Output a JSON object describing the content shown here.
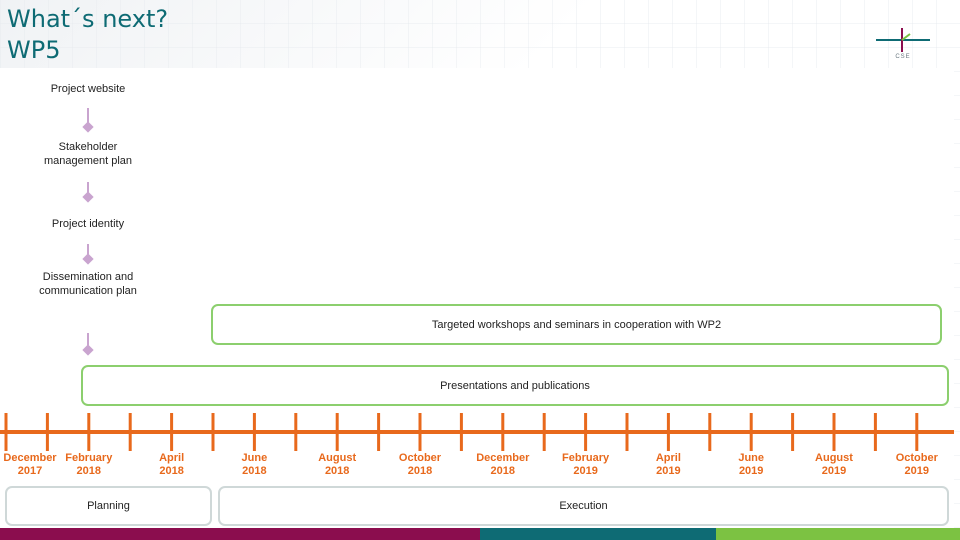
{
  "slide": {
    "title": "What´s next?",
    "subtitle": "WP5"
  },
  "logo": {
    "text": "CSE"
  },
  "steps": [
    {
      "label": "Project website"
    },
    {
      "label": "Stakeholder management plan"
    },
    {
      "label": "Project identity"
    },
    {
      "label": "Dissemination and communication plan"
    }
  ],
  "activities": {
    "workshops": "Targeted workshops and seminars in cooperation with WP2",
    "presentations": "Presentations and publications"
  },
  "timeline_dates": [
    "December 2017",
    "February 2018",
    "April 2018",
    "June 2018",
    "August 2018",
    "October 2018",
    "December 2018",
    "February 2019",
    "April 2019",
    "June 2019",
    "August 2019",
    "October 2019"
  ],
  "phases": {
    "planning": "Planning",
    "execution": "Execution"
  },
  "colors": {
    "title": "#0e6b74",
    "timeline": "#e8691c",
    "activity_border": "#8ccf6e",
    "arrow": "#c9a4cf",
    "bar_purple": "#8b0d4e",
    "bar_teal": "#0e6b74",
    "bar_green": "#7cc242"
  }
}
